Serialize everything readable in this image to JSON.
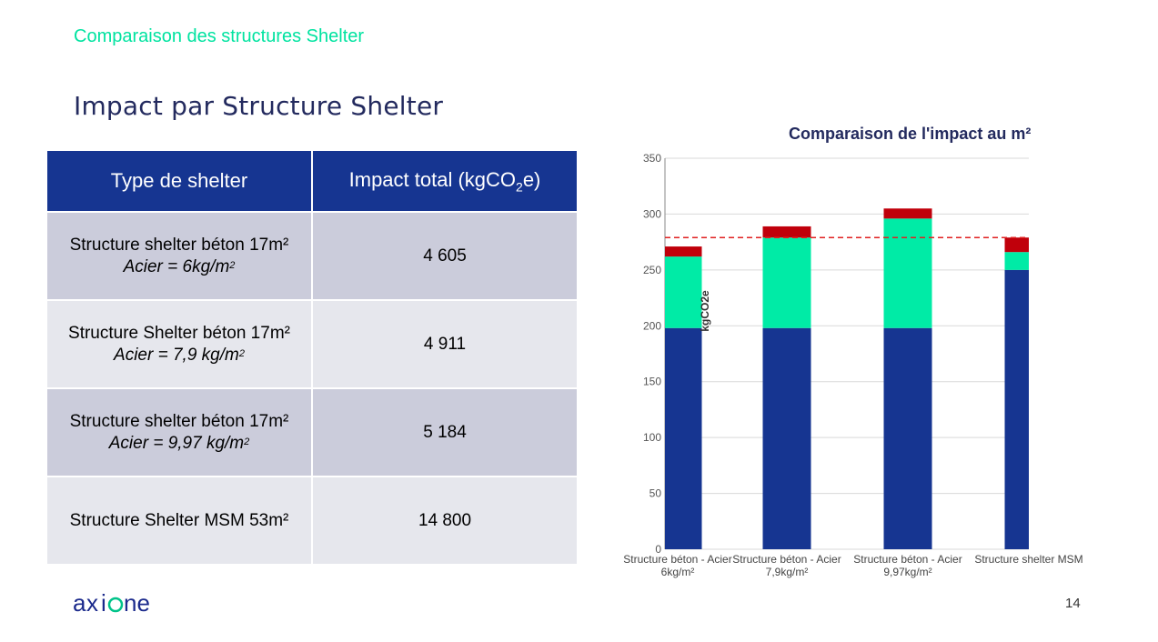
{
  "header": {
    "section": "Comparaison des structures Shelter",
    "title": "Impact par Structure Shelter"
  },
  "table": {
    "headers": [
      "Type de shelter",
      "Impact total (kgCO",
      "2",
      "e)"
    ],
    "rows": [
      {
        "type": "Structure shelter béton 17m²",
        "sub": "Acier = 6kg/m",
        "sup": "2",
        "impact": "4 605"
      },
      {
        "type": "Structure Shelter béton 17m²",
        "sub": "Acier = 7,9 kg/m",
        "sup": "2",
        "impact": "4 911"
      },
      {
        "type": "Structure shelter béton 17m²",
        "sub": "Acier = 9,97 kg/m",
        "sup": "2",
        "impact": "5 184"
      },
      {
        "type": "Structure Shelter MSM 53m²",
        "sub": "",
        "sup": "",
        "impact": "14 800"
      }
    ]
  },
  "chart_data": {
    "type": "bar",
    "stacked": true,
    "title": "Comparaison de l'impact au m²",
    "ylabel": "kgCO2e",
    "ylim": [
      0,
      350
    ],
    "yticks": [
      0,
      50,
      100,
      150,
      200,
      250,
      300,
      350
    ],
    "grid": true,
    "categories": [
      [
        "Structure béton - Acier",
        "6kg/m²"
      ],
      [
        "Structure béton - Acier",
        "7,9kg/m²"
      ],
      [
        "Structure béton - Acier",
        "9,97kg/m²"
      ],
      [
        "Structure shelter MSM"
      ]
    ],
    "series": [
      {
        "color": "#163591",
        "values": [
          198,
          198,
          198,
          250
        ]
      },
      {
        "color": "#00eba6",
        "values": [
          64,
          81,
          98,
          16
        ]
      },
      {
        "color": "#c0000b",
        "values": [
          9,
          10,
          9,
          13
        ]
      }
    ],
    "reference_line": {
      "value": 279,
      "color": "#e02020",
      "style": "dashed"
    }
  },
  "footer": {
    "logo_text": "axione",
    "page_number": "14"
  }
}
